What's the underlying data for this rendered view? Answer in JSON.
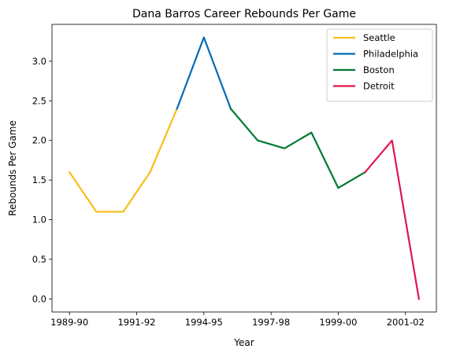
{
  "chart_data": {
    "type": "line",
    "title": "Dana Barros Career Rebounds Per Game",
    "xlabel": "Year",
    "ylabel": "Rebounds Per Game",
    "x_tick_labels": [
      "1989-90",
      "1991-92",
      "1994-95",
      "1997-98",
      "1999-00",
      "2001-02"
    ],
    "x_tick_positions": [
      0,
      2.5,
      5,
      7.5,
      10,
      12.5
    ],
    "xlim": [
      -0.65,
      13.65
    ],
    "ylim": [
      -0.165,
      3.465
    ],
    "y_ticks": [
      0.0,
      0.5,
      1.0,
      1.5,
      2.0,
      2.5,
      3.0
    ],
    "y_tick_labels": [
      "0.0",
      "0.5",
      "1.0",
      "1.5",
      "2.0",
      "2.5",
      "3.0"
    ],
    "legend_position": "top-right",
    "grid": false,
    "series": [
      {
        "name": "Seattle",
        "color": "#f7be16",
        "x": [
          0,
          1,
          2,
          3,
          4
        ],
        "y": [
          1.6,
          1.1,
          1.1,
          1.6,
          2.4
        ]
      },
      {
        "name": "Philadelphia",
        "color": "#006bb6",
        "x": [
          4,
          5,
          6
        ],
        "y": [
          2.4,
          3.3,
          2.4
        ]
      },
      {
        "name": "Boston",
        "color": "#007a33",
        "x": [
          6,
          7,
          8,
          9,
          10,
          11
        ],
        "y": [
          2.4,
          2.0,
          1.9,
          2.1,
          1.4,
          1.6
        ]
      },
      {
        "name": "Detroit",
        "color": "#e0164f",
        "x": [
          11,
          12,
          13
        ],
        "y": [
          1.6,
          2.0,
          0.0
        ]
      }
    ]
  }
}
